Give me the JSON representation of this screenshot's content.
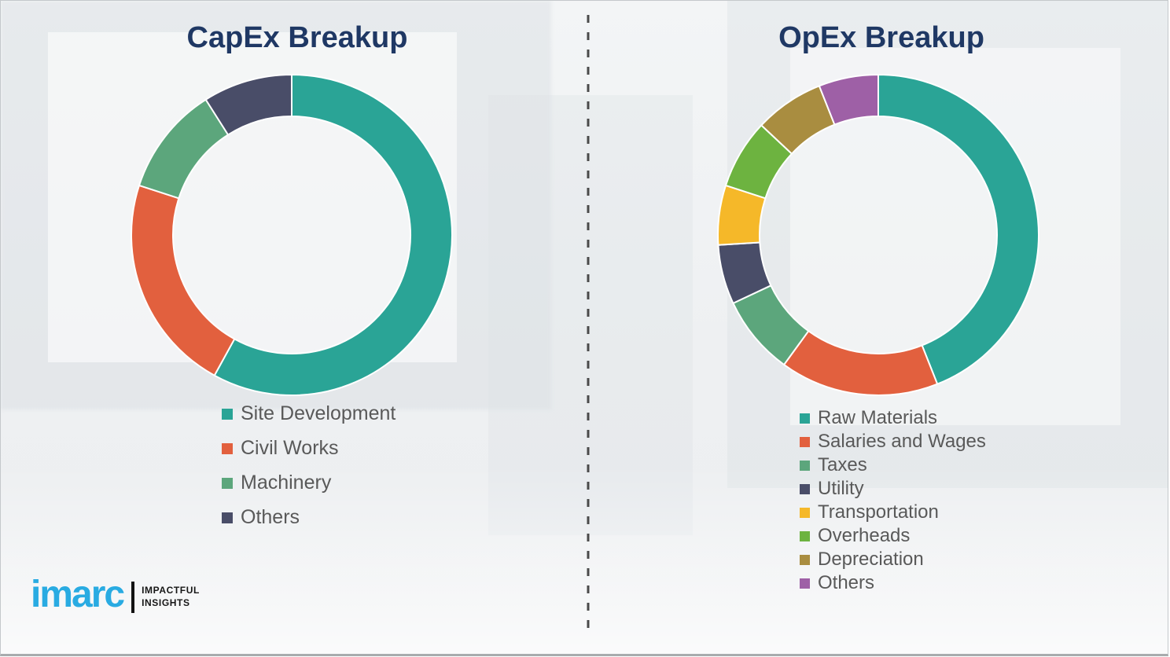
{
  "style": {
    "background": "#EFF1F2",
    "title_color": "#1F3864",
    "legend_text_color": "#595959",
    "divider_color": "#4A4A4A",
    "slice_separator_color": "#FFFFFF"
  },
  "chart_data": [
    {
      "type": "pie",
      "subtype": "donut",
      "title": "CapEx Breakup",
      "unit": "percent-estimated",
      "start_angle_deg": 0,
      "direction": "clockwise",
      "legend_position": "bottom-left",
      "labels": [
        "Site Development",
        "Civil Works",
        "Machinery",
        "Others"
      ],
      "values": [
        58,
        22,
        11,
        9
      ],
      "colors": [
        "#2AA496",
        "#E2603E",
        "#5CA67C",
        "#494D68"
      ]
    },
    {
      "type": "pie",
      "subtype": "donut",
      "title": "OpEx Breakup",
      "unit": "percent-estimated",
      "start_angle_deg": 0,
      "direction": "clockwise",
      "legend_position": "bottom-left",
      "labels": [
        "Raw Materials",
        "Salaries and Wages",
        "Taxes",
        "Utility",
        "Transportation",
        "Overheads",
        "Depreciation",
        "Others"
      ],
      "values": [
        44,
        16,
        8,
        6,
        6,
        7,
        7,
        6
      ],
      "colors": [
        "#2AA496",
        "#E2603E",
        "#5CA67C",
        "#494D68",
        "#F5B829",
        "#6DB340",
        "#A98D40",
        "#9E60A6"
      ]
    }
  ],
  "logo": {
    "brand": "imarc",
    "brand_color": "#29ABE2",
    "tagline": [
      "IMPACTFUL",
      "INSIGHTS"
    ],
    "tagline_color": "#161616"
  }
}
